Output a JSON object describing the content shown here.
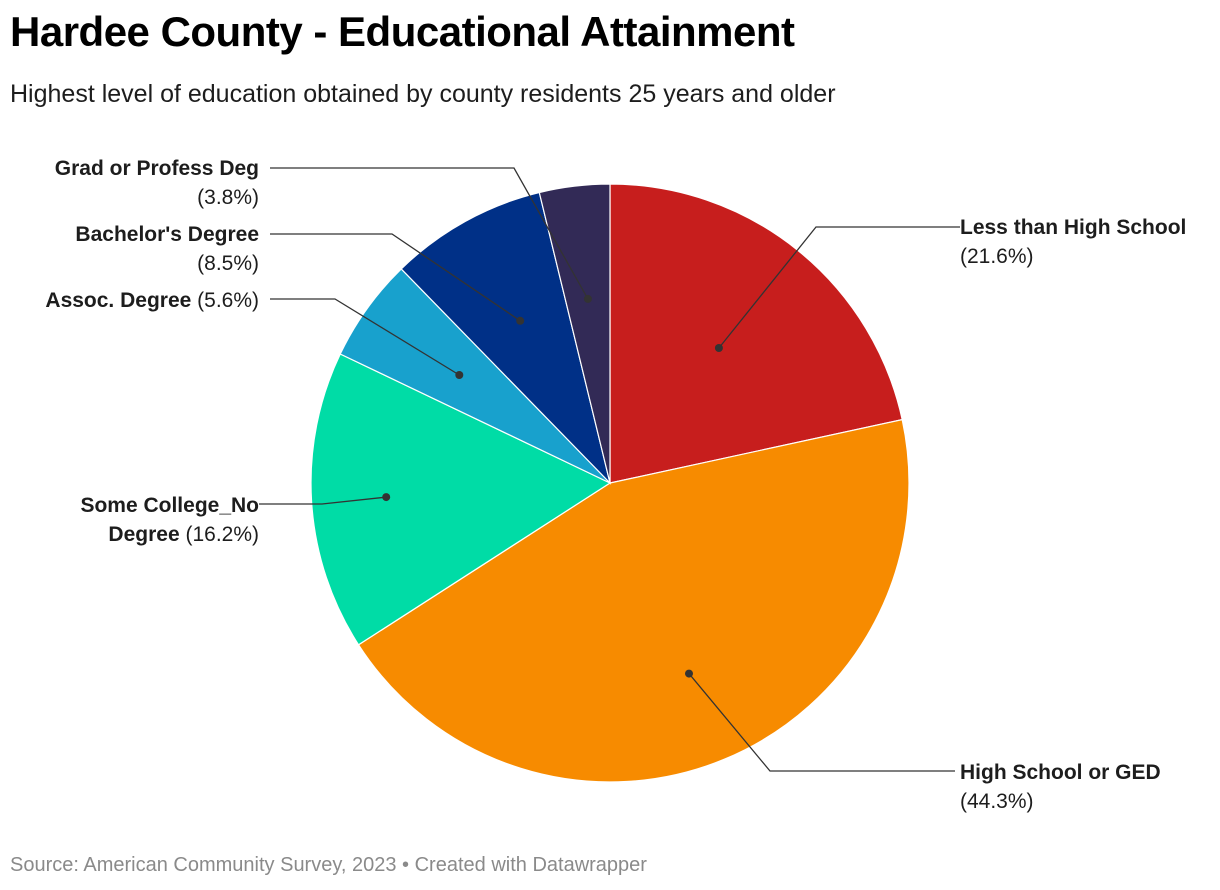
{
  "title": "Hardee County - Educational Attainment",
  "subtitle": "Highest level of education obtained by county residents 25 years and older",
  "footer": {
    "source": "Source: American Community Survey, 2023",
    "separator": "•",
    "credit": "Created with Datawrapper"
  },
  "chart_data": {
    "type": "pie",
    "title": "Hardee County - Educational Attainment",
    "subtitle": "Highest level of education obtained by county residents 25 years and older",
    "slices": [
      {
        "name": "Less than High School",
        "value": 21.6,
        "pct_label": "(21.6%)",
        "color": "#c71e1d"
      },
      {
        "name": "High School or GED",
        "value": 44.3,
        "pct_label": "(44.3%)",
        "color": "#f78b00"
      },
      {
        "name": "Some College_No Degree",
        "value": 16.2,
        "pct_label": "(16.2%)",
        "color": "#00dca6"
      },
      {
        "name": "Assoc. Degree",
        "value": 5.6,
        "pct_label": "(5.6%)",
        "color": "#18a1cd"
      },
      {
        "name": "Bachelor's Degree",
        "value": 8.5,
        "pct_label": "(8.5%)",
        "color": "#003087"
      },
      {
        "name": "Grad or Profess Deg",
        "value": 3.8,
        "pct_label": "(3.8%)",
        "color": "#322a56"
      }
    ],
    "start": "12 o'clock",
    "direction": "clockwise"
  }
}
